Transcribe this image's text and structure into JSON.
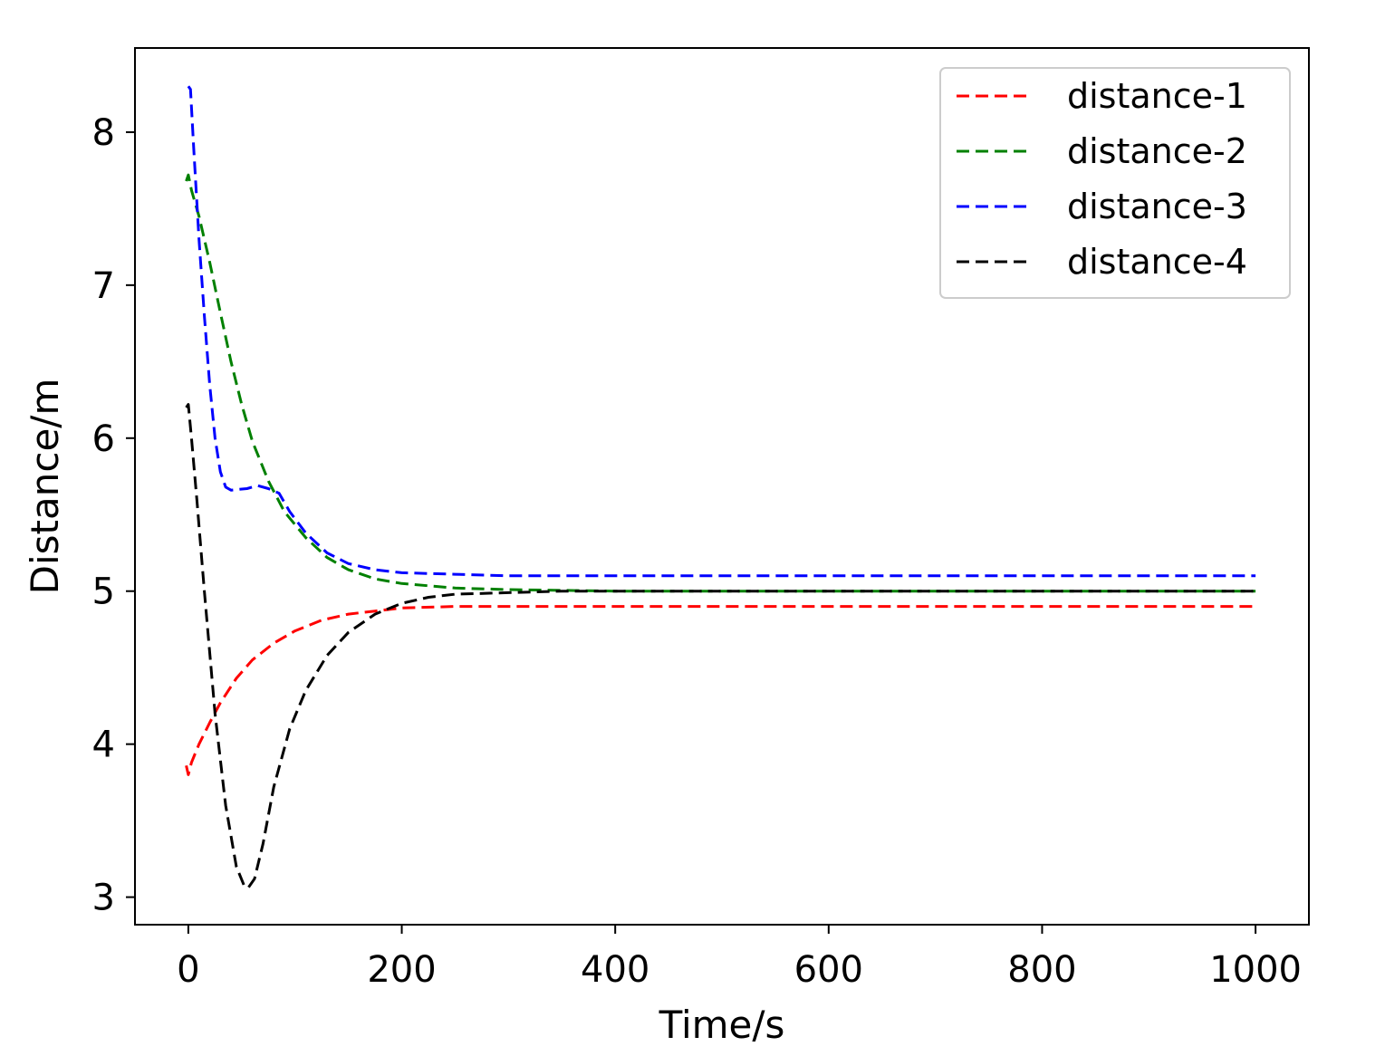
{
  "chart_data": {
    "type": "line",
    "title": "",
    "xlabel": "Time/s",
    "ylabel": "Distance/m",
    "xlim": [
      -50,
      1050
    ],
    "ylim": [
      2.82,
      8.55
    ],
    "x_ticks": [
      0,
      200,
      400,
      600,
      800,
      1000
    ],
    "y_ticks": [
      3,
      4,
      5,
      6,
      7,
      8
    ],
    "grid": false,
    "legend_position": "top-right",
    "line_style": "dashed",
    "series": [
      {
        "name": "distance-1",
        "color": "#ff0000",
        "points": [
          [
            -2,
            3.86
          ],
          [
            0,
            3.8
          ],
          [
            3,
            3.88
          ],
          [
            10,
            4.0
          ],
          [
            20,
            4.14
          ],
          [
            30,
            4.27
          ],
          [
            45,
            4.43
          ],
          [
            60,
            4.55
          ],
          [
            80,
            4.66
          ],
          [
            100,
            4.74
          ],
          [
            125,
            4.81
          ],
          [
            150,
            4.85
          ],
          [
            175,
            4.87
          ],
          [
            200,
            4.89
          ],
          [
            250,
            4.9
          ],
          [
            300,
            4.9
          ],
          [
            400,
            4.9
          ],
          [
            600,
            4.9
          ],
          [
            800,
            4.9
          ],
          [
            1000,
            4.9
          ]
        ]
      },
      {
        "name": "distance-2",
        "color": "#008000",
        "points": [
          [
            -2,
            7.68
          ],
          [
            0,
            7.72
          ],
          [
            3,
            7.62
          ],
          [
            10,
            7.45
          ],
          [
            20,
            7.15
          ],
          [
            30,
            6.82
          ],
          [
            40,
            6.5
          ],
          [
            50,
            6.22
          ],
          [
            60,
            5.98
          ],
          [
            75,
            5.72
          ],
          [
            90,
            5.52
          ],
          [
            110,
            5.35
          ],
          [
            130,
            5.22
          ],
          [
            150,
            5.14
          ],
          [
            175,
            5.08
          ],
          [
            200,
            5.05
          ],
          [
            250,
            5.02
          ],
          [
            300,
            5.01
          ],
          [
            400,
            5.0
          ],
          [
            600,
            5.0
          ],
          [
            800,
            5.0
          ],
          [
            1000,
            5.0
          ]
        ]
      },
      {
        "name": "distance-3",
        "color": "#0000ff",
        "points": [
          [
            0,
            8.3
          ],
          [
            2,
            8.28
          ],
          [
            5,
            7.9
          ],
          [
            10,
            7.3
          ],
          [
            15,
            6.8
          ],
          [
            20,
            6.35
          ],
          [
            25,
            6.0
          ],
          [
            30,
            5.78
          ],
          [
            35,
            5.68
          ],
          [
            40,
            5.66
          ],
          [
            55,
            5.67
          ],
          [
            65,
            5.69
          ],
          [
            75,
            5.67
          ],
          [
            85,
            5.64
          ],
          [
            95,
            5.52
          ],
          [
            110,
            5.38
          ],
          [
            130,
            5.25
          ],
          [
            150,
            5.18
          ],
          [
            175,
            5.14
          ],
          [
            200,
            5.12
          ],
          [
            250,
            5.11
          ],
          [
            300,
            5.1
          ],
          [
            400,
            5.1
          ],
          [
            600,
            5.1
          ],
          [
            800,
            5.1
          ],
          [
            1000,
            5.1
          ]
        ]
      },
      {
        "name": "distance-4",
        "color": "#000000",
        "points": [
          [
            -2,
            6.2
          ],
          [
            0,
            6.22
          ],
          [
            3,
            6.0
          ],
          [
            8,
            5.6
          ],
          [
            15,
            5.0
          ],
          [
            25,
            4.2
          ],
          [
            35,
            3.6
          ],
          [
            45,
            3.2
          ],
          [
            52,
            3.08
          ],
          [
            56,
            3.06
          ],
          [
            62,
            3.12
          ],
          [
            70,
            3.35
          ],
          [
            80,
            3.72
          ],
          [
            95,
            4.1
          ],
          [
            110,
            4.35
          ],
          [
            130,
            4.58
          ],
          [
            150,
            4.73
          ],
          [
            175,
            4.85
          ],
          [
            200,
            4.92
          ],
          [
            225,
            4.96
          ],
          [
            250,
            4.98
          ],
          [
            300,
            4.99
          ],
          [
            350,
            5.0
          ],
          [
            400,
            5.0
          ],
          [
            600,
            5.0
          ],
          [
            800,
            5.0
          ],
          [
            1000,
            5.0
          ]
        ]
      }
    ]
  }
}
